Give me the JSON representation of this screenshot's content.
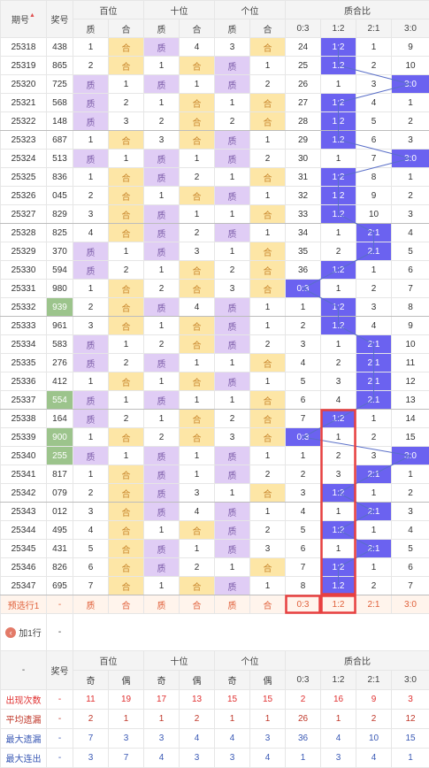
{
  "header": {
    "period": "期号",
    "number": "奖号",
    "groups": [
      "百位",
      "十位",
      "个位",
      "质合比"
    ],
    "sub": [
      "质",
      "合",
      "质",
      "合",
      "质",
      "合"
    ],
    "ratio_cols": [
      "0:3",
      "1:2",
      "2:1",
      "3:0"
    ]
  },
  "rows": [
    {
      "p": "25318",
      "n": "438",
      "pos": [
        [
          "1",
          ""
        ],
        [
          "合",
          "he"
        ],
        [
          "质",
          "zhi"
        ],
        [
          "4",
          ""
        ],
        [
          "3",
          ""
        ],
        [
          "合",
          "he"
        ]
      ],
      "r": [
        "24",
        "1:2",
        "1",
        "9"
      ],
      "ri": 1
    },
    {
      "p": "25319",
      "n": "865",
      "pos": [
        [
          "2",
          ""
        ],
        [
          "合",
          "he"
        ],
        [
          "1",
          ""
        ],
        [
          "合",
          "he"
        ],
        [
          "质",
          "zhi"
        ],
        [
          "1",
          ""
        ]
      ],
      "r": [
        "25",
        "1:2",
        "2",
        "10"
      ],
      "ri": 1
    },
    {
      "p": "25320",
      "n": "725",
      "pos": [
        [
          "质",
          "zhi"
        ],
        [
          "1",
          ""
        ],
        [
          "质",
          "zhi"
        ],
        [
          "1",
          ""
        ],
        [
          "质",
          "zhi"
        ],
        [
          "2",
          ""
        ]
      ],
      "r": [
        "26",
        "1",
        "3",
        "3:0"
      ],
      "ri": 3
    },
    {
      "p": "25321",
      "n": "568",
      "pos": [
        [
          "质",
          "zhi"
        ],
        [
          "2",
          ""
        ],
        [
          "1",
          ""
        ],
        [
          "合",
          "he"
        ],
        [
          "1",
          ""
        ],
        [
          "合",
          "he"
        ]
      ],
      "r": [
        "27",
        "1:2",
        "4",
        "1"
      ],
      "ri": 1
    },
    {
      "p": "25322",
      "n": "148",
      "pos": [
        [
          "质",
          "zhi"
        ],
        [
          "3",
          ""
        ],
        [
          "2",
          ""
        ],
        [
          "合",
          "he"
        ],
        [
          "2",
          ""
        ],
        [
          "合",
          "he"
        ]
      ],
      "r": [
        "28",
        "1:2",
        "5",
        "2"
      ],
      "ri": 1,
      "end": true
    },
    {
      "p": "25323",
      "n": "687",
      "pos": [
        [
          "1",
          ""
        ],
        [
          "合",
          "he"
        ],
        [
          "3",
          ""
        ],
        [
          "合",
          "he"
        ],
        [
          "质",
          "zhi"
        ],
        [
          "1",
          ""
        ]
      ],
      "r": [
        "29",
        "1:2",
        "6",
        "3"
      ],
      "ri": 1
    },
    {
      "p": "25324",
      "n": "513",
      "pos": [
        [
          "质",
          "zhi"
        ],
        [
          "1",
          ""
        ],
        [
          "质",
          "zhi"
        ],
        [
          "1",
          ""
        ],
        [
          "质",
          "zhi"
        ],
        [
          "2",
          ""
        ]
      ],
      "r": [
        "30",
        "1",
        "7",
        "3:0"
      ],
      "ri": 3
    },
    {
      "p": "25325",
      "n": "836",
      "pos": [
        [
          "1",
          ""
        ],
        [
          "合",
          "he"
        ],
        [
          "质",
          "zhi"
        ],
        [
          "2",
          ""
        ],
        [
          "1",
          ""
        ],
        [
          "合",
          "he"
        ]
      ],
      "r": [
        "31",
        "1:2",
        "8",
        "1"
      ],
      "ri": 1
    },
    {
      "p": "25326",
      "n": "045",
      "pos": [
        [
          "2",
          ""
        ],
        [
          "合",
          "he"
        ],
        [
          "1",
          ""
        ],
        [
          "合",
          "he"
        ],
        [
          "质",
          "zhi"
        ],
        [
          "1",
          ""
        ]
      ],
      "r": [
        "32",
        "1:2",
        "9",
        "2"
      ],
      "ri": 1
    },
    {
      "p": "25327",
      "n": "829",
      "pos": [
        [
          "3",
          ""
        ],
        [
          "合",
          "he"
        ],
        [
          "质",
          "zhi"
        ],
        [
          "1",
          ""
        ],
        [
          "1",
          ""
        ],
        [
          "合",
          "he"
        ]
      ],
      "r": [
        "33",
        "1:2",
        "10",
        "3"
      ],
      "ri": 1,
      "end": true
    },
    {
      "p": "25328",
      "n": "825",
      "pos": [
        [
          "4",
          ""
        ],
        [
          "合",
          "he"
        ],
        [
          "质",
          "zhi"
        ],
        [
          "2",
          ""
        ],
        [
          "质",
          "zhi"
        ],
        [
          "1",
          ""
        ]
      ],
      "r": [
        "34",
        "1",
        "2:1",
        "4"
      ],
      "ri": 2
    },
    {
      "p": "25329",
      "n": "370",
      "pos": [
        [
          "质",
          "zhi"
        ],
        [
          "1",
          ""
        ],
        [
          "质",
          "zhi"
        ],
        [
          "3",
          ""
        ],
        [
          "1",
          ""
        ],
        [
          "合",
          "he"
        ]
      ],
      "r": [
        "35",
        "2",
        "2:1",
        "5"
      ],
      "ri": 2
    },
    {
      "p": "25330",
      "n": "594",
      "pos": [
        [
          "质",
          "zhi"
        ],
        [
          "2",
          ""
        ],
        [
          "1",
          ""
        ],
        [
          "合",
          "he"
        ],
        [
          "2",
          ""
        ],
        [
          "合",
          "he"
        ]
      ],
      "r": [
        "36",
        "1:2",
        "1",
        "6"
      ],
      "ri": 1
    },
    {
      "p": "25331",
      "n": "980",
      "pos": [
        [
          "1",
          ""
        ],
        [
          "合",
          "he"
        ],
        [
          "2",
          ""
        ],
        [
          "合",
          "he"
        ],
        [
          "3",
          ""
        ],
        [
          "合",
          "he"
        ]
      ],
      "r": [
        "0:3",
        "1",
        "2",
        "7"
      ],
      "ri": 0
    },
    {
      "p": "25332",
      "n": "939",
      "g": true,
      "pos": [
        [
          "2",
          ""
        ],
        [
          "合",
          "he"
        ],
        [
          "质",
          "zhi"
        ],
        [
          "4",
          ""
        ],
        [
          "质",
          "zhi"
        ],
        [
          "1",
          ""
        ]
      ],
      "r": [
        "1",
        "1:2",
        "3",
        "8"
      ],
      "ri": 1,
      "end": true
    },
    {
      "p": "25333",
      "n": "961",
      "pos": [
        [
          "3",
          ""
        ],
        [
          "合",
          "he"
        ],
        [
          "1",
          ""
        ],
        [
          "合",
          "he"
        ],
        [
          "质",
          "zhi"
        ],
        [
          "1",
          ""
        ]
      ],
      "r": [
        "2",
        "1:2",
        "4",
        "9"
      ],
      "ri": 1
    },
    {
      "p": "25334",
      "n": "583",
      "pos": [
        [
          "质",
          "zhi"
        ],
        [
          "1",
          ""
        ],
        [
          "2",
          ""
        ],
        [
          "合",
          "he"
        ],
        [
          "质",
          "zhi"
        ],
        [
          "2",
          ""
        ]
      ],
      "r": [
        "3",
        "1",
        "2:1",
        "10"
      ],
      "ri": 2
    },
    {
      "p": "25335",
      "n": "276",
      "pos": [
        [
          "质",
          "zhi"
        ],
        [
          "2",
          ""
        ],
        [
          "质",
          "zhi"
        ],
        [
          "1",
          ""
        ],
        [
          "1",
          ""
        ],
        [
          "合",
          "he"
        ]
      ],
      "r": [
        "4",
        "2",
        "2:1",
        "11"
      ],
      "ri": 2
    },
    {
      "p": "25336",
      "n": "412",
      "pos": [
        [
          "1",
          ""
        ],
        [
          "合",
          "he"
        ],
        [
          "1",
          ""
        ],
        [
          "合",
          "he"
        ],
        [
          "质",
          "zhi"
        ],
        [
          "1",
          ""
        ]
      ],
      "r": [
        "5",
        "3",
        "2:1",
        "12"
      ],
      "ri": 2
    },
    {
      "p": "25337",
      "n": "554",
      "g": true,
      "pos": [
        [
          "质",
          "zhi"
        ],
        [
          "1",
          ""
        ],
        [
          "质",
          "zhi"
        ],
        [
          "1",
          ""
        ],
        [
          "1",
          ""
        ],
        [
          "合",
          "he"
        ]
      ],
      "r": [
        "6",
        "4",
        "2:1",
        "13"
      ],
      "ri": 2,
      "end": true
    },
    {
      "p": "25338",
      "n": "164",
      "pos": [
        [
          "质",
          "zhi"
        ],
        [
          "2",
          ""
        ],
        [
          "1",
          ""
        ],
        [
          "合",
          "he"
        ],
        [
          "2",
          ""
        ],
        [
          "合",
          "he"
        ]
      ],
      "r": [
        "7",
        "1:2",
        "1",
        "14"
      ],
      "ri": 1
    },
    {
      "p": "25339",
      "n": "900",
      "g": true,
      "pos": [
        [
          "1",
          ""
        ],
        [
          "合",
          "he"
        ],
        [
          "2",
          ""
        ],
        [
          "合",
          "he"
        ],
        [
          "3",
          ""
        ],
        [
          "合",
          "he"
        ]
      ],
      "r": [
        "0:3",
        "1",
        "2",
        "15"
      ],
      "ri": 0
    },
    {
      "p": "25340",
      "n": "255",
      "g": true,
      "pos": [
        [
          "质",
          "zhi"
        ],
        [
          "1",
          ""
        ],
        [
          "质",
          "zhi"
        ],
        [
          "1",
          ""
        ],
        [
          "质",
          "zhi"
        ],
        [
          "1",
          ""
        ]
      ],
      "r": [
        "1",
        "2",
        "3",
        "3:0"
      ],
      "ri": 3
    },
    {
      "p": "25341",
      "n": "817",
      "pos": [
        [
          "1",
          ""
        ],
        [
          "合",
          "he"
        ],
        [
          "质",
          "zhi"
        ],
        [
          "1",
          ""
        ],
        [
          "质",
          "zhi"
        ],
        [
          "2",
          ""
        ]
      ],
      "r": [
        "2",
        "3",
        "2:1",
        "1"
      ],
      "ri": 2
    },
    {
      "p": "25342",
      "n": "079",
      "pos": [
        [
          "2",
          ""
        ],
        [
          "合",
          "he"
        ],
        [
          "质",
          "zhi"
        ],
        [
          "3",
          ""
        ],
        [
          "1",
          ""
        ],
        [
          "合",
          "he"
        ]
      ],
      "r": [
        "3",
        "1:2",
        "1",
        "2"
      ],
      "ri": 1,
      "end": true
    },
    {
      "p": "25343",
      "n": "012",
      "pos": [
        [
          "3",
          ""
        ],
        [
          "合",
          "he"
        ],
        [
          "质",
          "zhi"
        ],
        [
          "4",
          ""
        ],
        [
          "质",
          "zhi"
        ],
        [
          "1",
          ""
        ]
      ],
      "r": [
        "4",
        "1",
        "2:1",
        "3"
      ],
      "ri": 2
    },
    {
      "p": "25344",
      "n": "495",
      "pos": [
        [
          "4",
          ""
        ],
        [
          "合",
          "he"
        ],
        [
          "1",
          ""
        ],
        [
          "合",
          "he"
        ],
        [
          "质",
          "zhi"
        ],
        [
          "2",
          ""
        ]
      ],
      "r": [
        "5",
        "1:2",
        "1",
        "4"
      ],
      "ri": 1
    },
    {
      "p": "25345",
      "n": "431",
      "pos": [
        [
          "5",
          ""
        ],
        [
          "合",
          "he"
        ],
        [
          "质",
          "zhi"
        ],
        [
          "1",
          ""
        ],
        [
          "质",
          "zhi"
        ],
        [
          "3",
          ""
        ]
      ],
      "r": [
        "6",
        "1",
        "2:1",
        "5"
      ],
      "ri": 2
    },
    {
      "p": "25346",
      "n": "826",
      "pos": [
        [
          "6",
          ""
        ],
        [
          "合",
          "he"
        ],
        [
          "质",
          "zhi"
        ],
        [
          "2",
          ""
        ],
        [
          "1",
          ""
        ],
        [
          "合",
          "he"
        ]
      ],
      "r": [
        "7",
        "1:2",
        "1",
        "6"
      ],
      "ri": 1
    },
    {
      "p": "25347",
      "n": "695",
      "pos": [
        [
          "7",
          ""
        ],
        [
          "合",
          "he"
        ],
        [
          "1",
          ""
        ],
        [
          "合",
          "he"
        ],
        [
          "质",
          "zhi"
        ],
        [
          "1",
          ""
        ]
      ],
      "r": [
        "8",
        "1:2",
        "2",
        "7"
      ],
      "ri": 1,
      "end": true
    }
  ],
  "predict": {
    "label": "预选行1",
    "n": "-",
    "cells": [
      "质",
      "合",
      "质",
      "合",
      "质",
      "合"
    ],
    "r": [
      "0:3",
      "1:2",
      "2:1",
      "3:0"
    ]
  },
  "add_row": {
    "label": "加1行",
    "value": "-"
  },
  "footer_header": {
    "dash": "-",
    "number": "奖号",
    "groups": [
      "百位",
      "十位",
      "个位",
      "质合比"
    ],
    "sub": [
      "奇",
      "偶",
      "奇",
      "偶",
      "奇",
      "偶"
    ],
    "ratio_cols": [
      "0:3",
      "1:2",
      "2:1",
      "3:0"
    ]
  },
  "stats": [
    {
      "label": "出现次数",
      "color": "#e03030",
      "vals": [
        "-",
        "11",
        "19",
        "17",
        "13",
        "15",
        "15",
        "2",
        "16",
        "9",
        "3"
      ]
    },
    {
      "label": "平均遗漏",
      "color": "#c0392b",
      "vals": [
        "-",
        "2",
        "1",
        "1",
        "2",
        "1",
        "1",
        "26",
        "1",
        "2",
        "12"
      ]
    },
    {
      "label": "最大遗漏",
      "color": "#3a59b5",
      "vals": [
        "-",
        "7",
        "3",
        "3",
        "4",
        "4",
        "3",
        "36",
        "4",
        "10",
        "15"
      ]
    },
    {
      "label": "最大连出",
      "color": "#3a59b5",
      "vals": [
        "-",
        "3",
        "7",
        "4",
        "3",
        "3",
        "4",
        "1",
        "3",
        "4",
        "1"
      ]
    }
  ],
  "colors": {
    "zhi": "#e0cdf5",
    "he": "#fde6a6",
    "ratio": "#6b62f0",
    "green": "#9cc48c",
    "red": "#e84040"
  }
}
